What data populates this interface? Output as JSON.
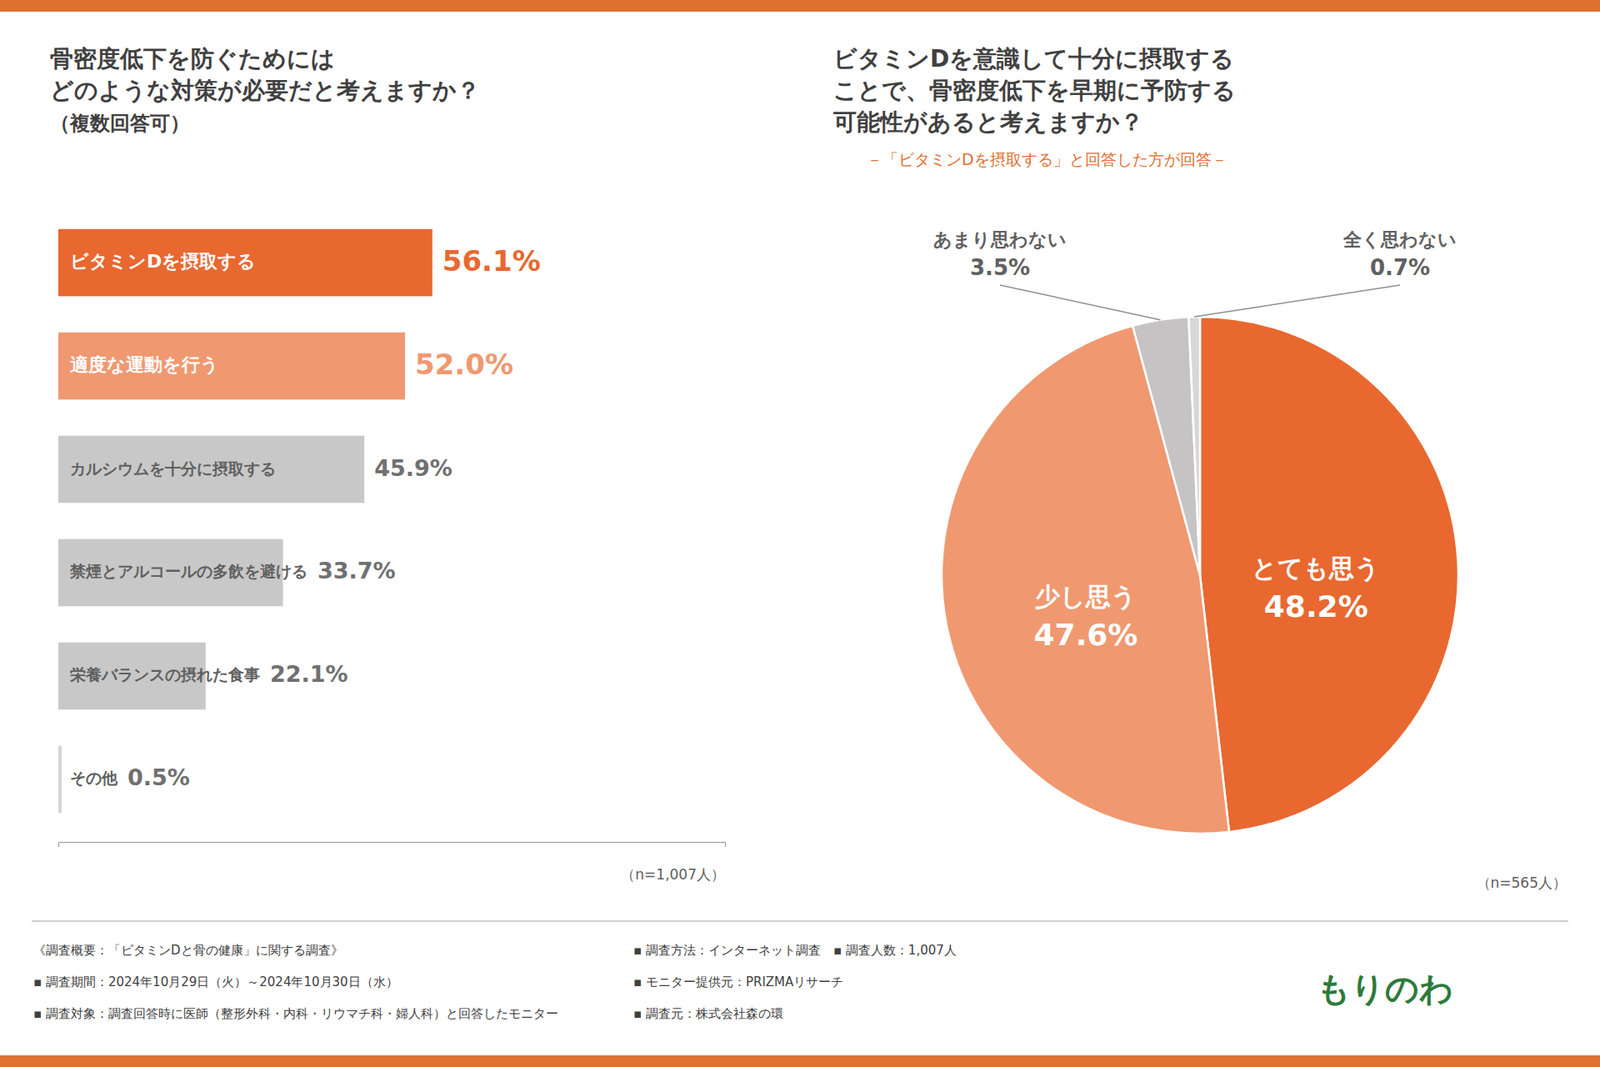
{
  "chart_data": [
    {
      "type": "bar",
      "orientation": "horizontal",
      "title": "骨密度低下を防ぐためには\nどのような対策が必要だと考えますか？",
      "subtitle": "（複数回答可）",
      "categories": [
        "ビタミンDを摂取する",
        "適度な運動を行う",
        "カルシウムを十分に摂取する",
        "禁煙とアルコールの多飲を避ける",
        "栄養バランスの摂れた食事",
        "その他"
      ],
      "values": [
        56.1,
        52.0,
        45.9,
        33.7,
        22.1,
        0.5
      ],
      "value_labels": [
        "56.1%",
        "52.0%",
        "45.9%",
        "33.7%",
        "22.1%",
        "0.5%"
      ],
      "colors": [
        "#e86830",
        "#f09870",
        "#c8c8c8",
        "#c8c8c8",
        "#c8c8c8",
        "#d4d4d4"
      ],
      "data_labels": true,
      "xlim": [
        0,
        100
      ],
      "tick_labels": false,
      "annotations": [
        "（n=1,007人）"
      ]
    },
    {
      "type": "pie",
      "title": "ビタミンDを意識して十分に摂取する\nことで、骨密度低下を早期に予防する\n可能性があると考えますか？",
      "subtitle": "－「ビタミンDを摂取する」と回答した方が回答－",
      "categories": [
        "とても思う",
        "少し思う",
        "あまり思わない",
        "全く思わない"
      ],
      "values": [
        48.2,
        47.6,
        3.5,
        0.7
      ],
      "value_labels": [
        "48.2%",
        "47.6%",
        "3.5%",
        "0.7%"
      ],
      "colors": [
        "#e86830",
        "#f09870",
        "#c5c3c3",
        "#d8d6d6"
      ],
      "data_labels": true,
      "annotations": [
        "（n=565人）",
        "《調査概要：「ビタミンDと骨の健康」に関する調査》",
        "▪ 調査期間：2024年10月29日（火）～2024年10月30日（水）",
        "▪ 調査対象：調査回答時に医師（整形外科・内科・リウマチ科・婦人科）と回答したモニター",
        "▪ 調査方法：インターネット調査　▪ 調査人数：1,007人",
        "▪ モニター提供元：PRIZMAリサーチ",
        "▪ 調査元：株式会社森の環",
        "もりのわ"
      ]
    }
  ]
}
